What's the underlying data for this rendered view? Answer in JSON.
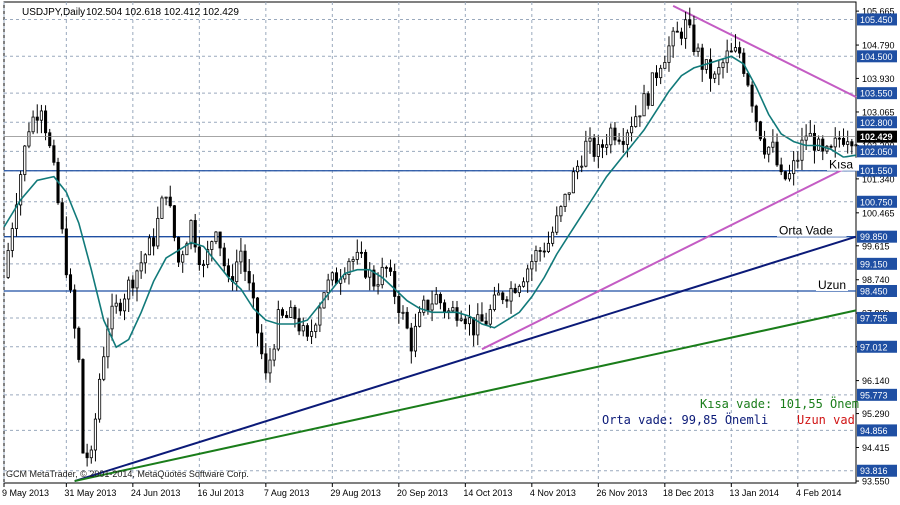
{
  "header": {
    "symbol_timeframe": "USDJPY,Daily",
    "ohlc": "102.504 102.618 102.412 102.429"
  },
  "watermark": "GCM MetaTrader, © 2001-2014, MetaQuotes Software Corp.",
  "colors": {
    "background": "#ffffff",
    "bull_candle": "#ffffff",
    "bear_candle": "#000000",
    "moving_average": "#117a7a",
    "level_line": "#1f4fa3",
    "grid": "#9aa9bd",
    "trend_short": "#c45cc4",
    "trend_medium": "#0b1a78",
    "trend_long": "#1a7d1a",
    "price_badge_bg": "#1f4fa3",
    "current_price_badge_bg": "#000000"
  },
  "chart_data": {
    "type": "candlestick",
    "title": "USDJPY,Daily",
    "ylim": [
      93.5,
      105.9
    ],
    "x_range_index": [
      0,
      205
    ],
    "x_tick_labels": [
      {
        "index": 0,
        "label": "9 May 2013"
      },
      {
        "index": 15,
        "label": "31 May 2013"
      },
      {
        "index": 31,
        "label": "24 Jun 2013"
      },
      {
        "index": 47,
        "label": "16 Jul 2013"
      },
      {
        "index": 63,
        "label": "7 Aug 2013"
      },
      {
        "index": 79,
        "label": "29 Aug 2013"
      },
      {
        "index": 95,
        "label": "20 Sep 2013"
      },
      {
        "index": 111,
        "label": "14 Oct 2013"
      },
      {
        "index": 127,
        "label": "4 Nov 2013"
      },
      {
        "index": 143,
        "label": "26 Nov 2013"
      },
      {
        "index": 159,
        "label": "18 Dec 2013"
      },
      {
        "index": 175,
        "label": "13 Jan 2014"
      },
      {
        "index": 191,
        "label": "4 Feb 2014"
      }
    ],
    "y_tick_labels": [
      "105.665",
      "104.790",
      "103.930",
      "103.065",
      "102.200",
      "101.340",
      "100.465",
      "99.615",
      "98.740",
      "97.880",
      "97.015",
      "96.140",
      "95.290",
      "94.415",
      "93.550"
    ],
    "badge_levels": [
      "105.450",
      "104.500",
      "103.550",
      "102.800",
      "102.050",
      "101.550",
      "100.750",
      "99.850",
      "99.150",
      "98.450",
      "97.755",
      "97.012",
      "95.773",
      "94.856",
      "93.816"
    ],
    "current_price": "102.429",
    "horizontal_levels": [
      {
        "label": "Kısa",
        "value": 101.55
      },
      {
        "label": "Orta Vade",
        "value": 99.85
      },
      {
        "label": "Uzun",
        "value": 98.45
      }
    ],
    "trendlines": [
      {
        "name": "Kısa vade resistance",
        "color_key": "trend_short",
        "start": [
          161,
          105.8
        ],
        "end": [
          205,
          103.45
        ]
      },
      {
        "name": "Kısa vade support",
        "color_key": "trend_short",
        "start": [
          115,
          96.95
        ],
        "end": [
          205,
          101.75
        ]
      },
      {
        "name": "Orta vade",
        "color_key": "trend_medium",
        "start": [
          17,
          93.55
        ],
        "end": [
          205,
          99.85
        ]
      },
      {
        "name": "Uzun vade",
        "color_key": "trend_long",
        "start": [
          17,
          93.55
        ],
        "end": [
          205,
          97.95
        ]
      }
    ],
    "legend_notes": [
      {
        "text": "Kısa vade: 101,55 Önem",
        "color_key": "trend_long"
      },
      {
        "text": "Orta vade: 99,85 Önemli",
        "color_key": "trend_medium"
      },
      {
        "text": "Uzun vad",
        "color_key": "red"
      }
    ],
    "close_path": [
      [
        0,
        98.8
      ],
      [
        3,
        100.9
      ],
      [
        6,
        102.7
      ],
      [
        9,
        103.3
      ],
      [
        12,
        101.5
      ],
      [
        15,
        99.1
      ],
      [
        18,
        96.6
      ],
      [
        19,
        94.3
      ],
      [
        21,
        94.1
      ],
      [
        23,
        96.2
      ],
      [
        25,
        97.6
      ],
      [
        29,
        98.4
      ],
      [
        32,
        99.0
      ],
      [
        36,
        99.8
      ],
      [
        39,
        101.1
      ],
      [
        42,
        99.2
      ],
      [
        45,
        100.2
      ],
      [
        48,
        99.0
      ],
      [
        51,
        100.2
      ],
      [
        54,
        98.6
      ],
      [
        57,
        99.5
      ],
      [
        60,
        98.0
      ],
      [
        63,
        96.2
      ],
      [
        66,
        97.7
      ],
      [
        70,
        97.8
      ],
      [
        73,
        97.1
      ],
      [
        77,
        98.5
      ],
      [
        80,
        98.8
      ],
      [
        83,
        99.3
      ],
      [
        86,
        99.2
      ],
      [
        89,
        98.7
      ],
      [
        92,
        99.0
      ],
      [
        95,
        98.1
      ],
      [
        98,
        97.1
      ],
      [
        101,
        98.0
      ],
      [
        104,
        98.3
      ],
      [
        107,
        97.9
      ],
      [
        110,
        98.0
      ],
      [
        113,
        97.5
      ],
      [
        116,
        97.7
      ],
      [
        119,
        98.3
      ],
      [
        122,
        98.5
      ],
      [
        125,
        98.9
      ],
      [
        128,
        99.4
      ],
      [
        131,
        99.7
      ],
      [
        134,
        100.5
      ],
      [
        137,
        101.4
      ],
      [
        140,
        102.2
      ],
      [
        143,
        102.0
      ],
      [
        146,
        102.6
      ],
      [
        149,
        102.5
      ],
      [
        152,
        103.0
      ],
      [
        155,
        103.5
      ],
      [
        158,
        104.4
      ],
      [
        161,
        104.9
      ],
      [
        164,
        105.3
      ],
      [
        166,
        104.8
      ],
      [
        168,
        104.3
      ],
      [
        171,
        103.9
      ],
      [
        174,
        104.5
      ],
      [
        177,
        104.6
      ],
      [
        179,
        103.9
      ],
      [
        181,
        102.9
      ],
      [
        183,
        102.2
      ],
      [
        185,
        102.1
      ],
      [
        187,
        101.3
      ],
      [
        189,
        101.4
      ],
      [
        191,
        101.9
      ],
      [
        193,
        102.5
      ],
      [
        195,
        102.3
      ],
      [
        197,
        101.9
      ],
      [
        199,
        102.0
      ],
      [
        201,
        102.4
      ],
      [
        203,
        102.5
      ],
      [
        205,
        102.43
      ]
    ],
    "ma_path": [
      [
        0,
        100.1
      ],
      [
        4,
        100.8
      ],
      [
        8,
        101.3
      ],
      [
        12,
        101.4
      ],
      [
        15,
        101.0
      ],
      [
        18,
        100.2
      ],
      [
        21,
        99.0
      ],
      [
        24,
        97.7
      ],
      [
        27,
        97.0
      ],
      [
        30,
        97.2
      ],
      [
        33,
        97.9
      ],
      [
        36,
        98.7
      ],
      [
        39,
        99.3
      ],
      [
        42,
        99.5
      ],
      [
        45,
        99.7
      ],
      [
        48,
        99.6
      ],
      [
        51,
        99.2
      ],
      [
        54,
        98.8
      ],
      [
        57,
        98.5
      ],
      [
        60,
        98.0
      ],
      [
        63,
        97.7
      ],
      [
        66,
        97.6
      ],
      [
        70,
        97.6
      ],
      [
        73,
        97.7
      ],
      [
        76,
        98.1
      ],
      [
        79,
        98.5
      ],
      [
        82,
        98.9
      ],
      [
        85,
        99.0
      ],
      [
        88,
        99.0
      ],
      [
        91,
        98.8
      ],
      [
        94,
        98.5
      ],
      [
        97,
        98.2
      ],
      [
        100,
        98.0
      ],
      [
        103,
        97.9
      ],
      [
        106,
        97.9
      ],
      [
        109,
        97.9
      ],
      [
        112,
        97.8
      ],
      [
        115,
        97.6
      ],
      [
        118,
        97.5
      ],
      [
        121,
        97.7
      ],
      [
        124,
        97.9
      ],
      [
        127,
        98.3
      ],
      [
        130,
        98.8
      ],
      [
        133,
        99.4
      ],
      [
        136,
        99.9
      ],
      [
        139,
        100.4
      ],
      [
        142,
        100.9
      ],
      [
        145,
        101.4
      ],
      [
        148,
        101.8
      ],
      [
        151,
        102.2
      ],
      [
        154,
        102.6
      ],
      [
        157,
        103.1
      ],
      [
        160,
        103.6
      ],
      [
        163,
        104.0
      ],
      [
        166,
        104.2
      ],
      [
        169,
        104.3
      ],
      [
        172,
        104.4
      ],
      [
        175,
        104.5
      ],
      [
        178,
        104.3
      ],
      [
        181,
        103.7
      ],
      [
        184,
        103.0
      ],
      [
        187,
        102.5
      ],
      [
        190,
        102.3
      ],
      [
        193,
        102.2
      ],
      [
        196,
        102.2
      ],
      [
        199,
        102.1
      ],
      [
        202,
        101.9
      ],
      [
        205,
        101.95
      ]
    ]
  }
}
